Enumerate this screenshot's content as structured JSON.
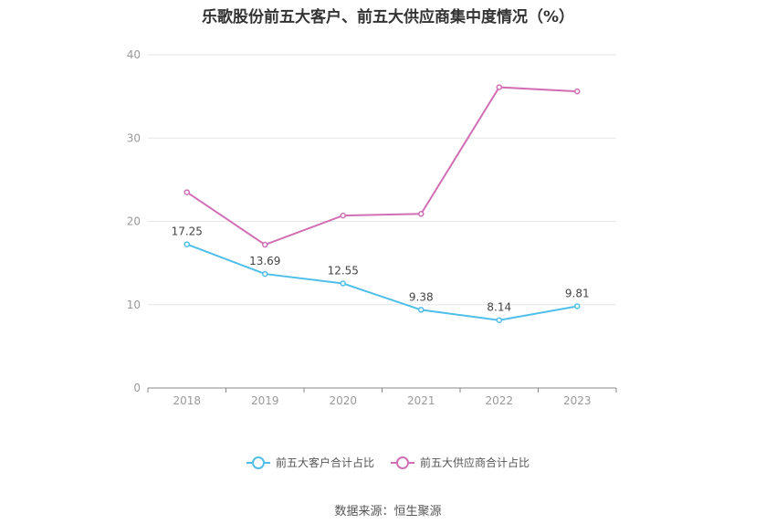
{
  "chart_data": {
    "type": "line",
    "title": "乐歌股份前五大客户、前五大供应商集中度情况（%）",
    "categories": [
      "2018",
      "2019",
      "2020",
      "2021",
      "2022",
      "2023"
    ],
    "ylim": [
      0,
      40
    ],
    "yticks": [
      "0",
      "10",
      "20",
      "30",
      "40"
    ],
    "grid": true,
    "legend_position": "bottom",
    "series": [
      {
        "name": "前五大客户合计占比",
        "color": "#4fbfea",
        "values": [
          17.25,
          13.69,
          12.55,
          9.38,
          8.14,
          9.81
        ],
        "labels": [
          "17.25",
          "13.69",
          "12.55",
          "9.38",
          "8.14",
          "9.81"
        ]
      },
      {
        "name": "前五大供应商合计占比",
        "color": "#d16fb4",
        "values": [
          23.5,
          17.2,
          20.7,
          20.9,
          36.1,
          35.6
        ],
        "labels": []
      }
    ],
    "source": "数据来源：恒生聚源"
  }
}
